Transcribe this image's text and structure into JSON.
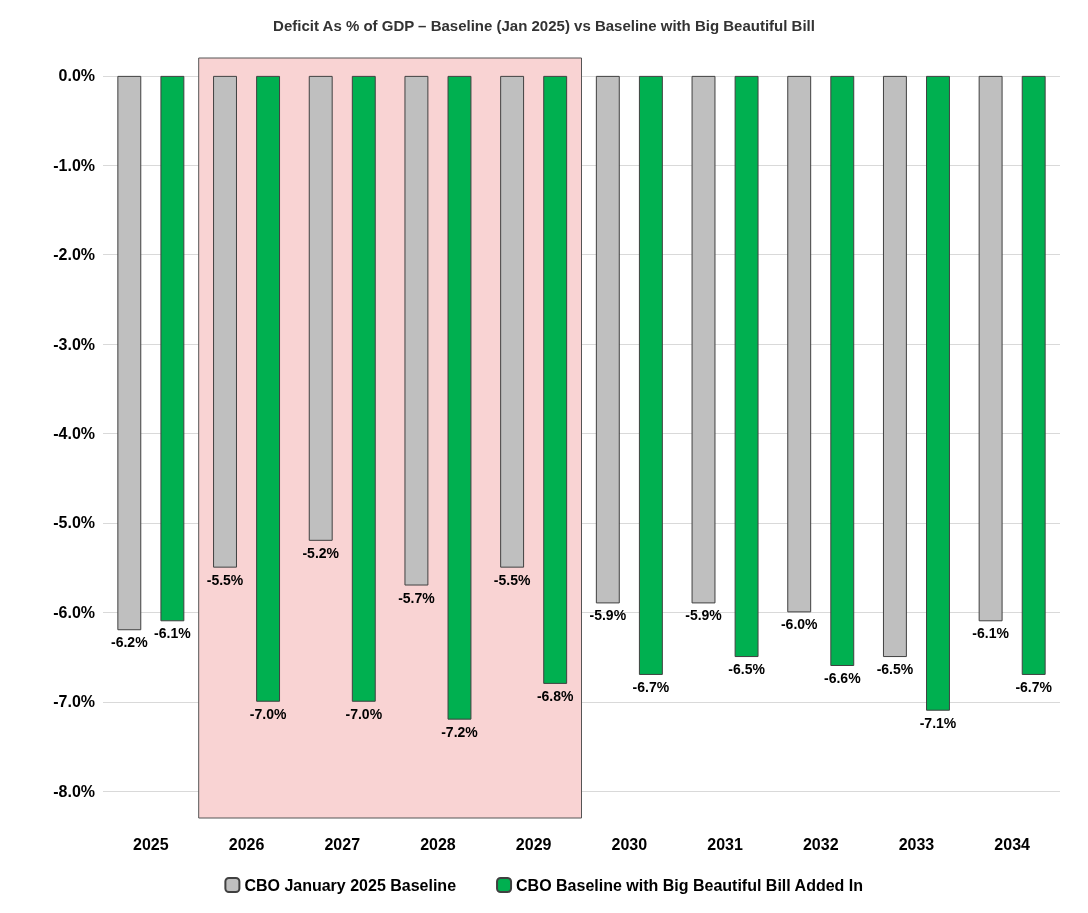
{
  "chart_data": {
    "type": "bar",
    "title": "Deficit As % of GDP – Baseline (Jan 2025) vs Baseline with Big Beautiful Bill",
    "categories": [
      "2025",
      "2026",
      "2027",
      "2028",
      "2029",
      "2030",
      "2031",
      "2032",
      "2033",
      "2034"
    ],
    "series": [
      {
        "name": "CBO January 2025 Baseline",
        "color": "#bfbfbf",
        "values": [
          -6.2,
          -5.5,
          -5.2,
          -5.7,
          -5.5,
          -5.9,
          -5.9,
          -6.0,
          -6.5,
          -6.1
        ],
        "value_labels": [
          "-6.2%",
          "-5.5%",
          "-5.2%",
          "-5.7%",
          "-5.5%",
          "-5.9%",
          "-5.9%",
          "-6.0%",
          "-6.5%",
          "-6.1%"
        ]
      },
      {
        "name": "CBO Baseline with Big Beautiful Bill Added In",
        "color": "#00b050",
        "values": [
          -6.1,
          -7.0,
          -7.0,
          -7.2,
          -6.8,
          -6.7,
          -6.5,
          -6.6,
          -7.1,
          -6.7
        ],
        "value_labels": [
          "-6.1%",
          "-7.0%",
          "-7.0%",
          "-7.2%",
          "-6.8%",
          "-6.7%",
          "-6.5%",
          "-6.6%",
          "-7.1%",
          "-6.7%"
        ]
      }
    ],
    "ylim": [
      -8.3,
      0.2
    ],
    "yticks": [
      {
        "value": -8,
        "label": "-8.0%"
      },
      {
        "value": -7,
        "label": "-7.0%"
      },
      {
        "value": -6,
        "label": "-6.0%"
      },
      {
        "value": -5,
        "label": "-5.0%"
      },
      {
        "value": -4,
        "label": "-4.0%"
      },
      {
        "value": -3,
        "label": "-3.0%"
      },
      {
        "value": -2,
        "label": "-2.0%"
      },
      {
        "value": -1,
        "label": "-1.0%"
      },
      {
        "value": 0,
        "label": "0.0%"
      }
    ],
    "bands": [
      {
        "axis": "x",
        "from": "2026",
        "to": "2029",
        "color": "#f9d3d3"
      }
    ],
    "grid": "y",
    "legend": "bottom"
  }
}
